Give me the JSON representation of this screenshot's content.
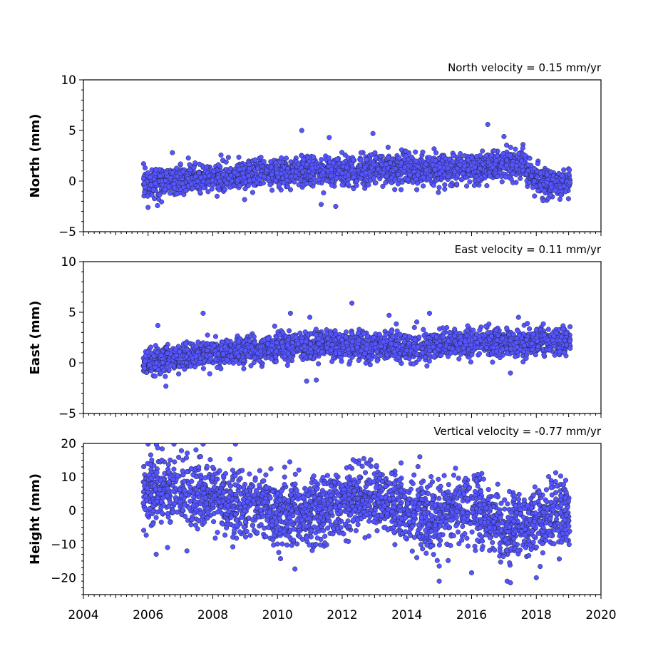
{
  "chart_data": [
    {
      "type": "scatter",
      "title": "North velocity = 0.15 mm/yr",
      "ylabel": "North (mm)",
      "xlim": [
        2004,
        2020
      ],
      "ylim": [
        -5,
        10
      ],
      "yticks": [
        -5,
        0,
        5,
        10
      ],
      "marker_color": "#5555ff",
      "x_range": [
        2005.85,
        2019.05
      ],
      "trend": [
        [
          2005.85,
          -0.2
        ],
        [
          2008.0,
          0.3
        ],
        [
          2010.0,
          0.8
        ],
        [
          2012.0,
          1.0
        ],
        [
          2014.0,
          1.2
        ],
        [
          2016.0,
          1.2
        ],
        [
          2017.6,
          1.8
        ],
        [
          2017.9,
          0.0
        ],
        [
          2019.05,
          -0.3
        ]
      ],
      "noise_sd": 0.7,
      "outliers": [
        [
          2010.75,
          5.0
        ],
        [
          2016.5,
          5.6
        ],
        [
          2012.95,
          4.7
        ],
        [
          2011.6,
          4.3
        ],
        [
          2017.0,
          4.4
        ],
        [
          2011.8,
          -2.5
        ],
        [
          2011.35,
          -2.3
        ],
        [
          2006.75,
          2.8
        ]
      ]
    },
    {
      "type": "scatter",
      "title": "East velocity = 0.11 mm/yr",
      "ylabel": "East (mm)",
      "xlim": [
        2004,
        2020
      ],
      "ylim": [
        -5,
        10
      ],
      "yticks": [
        -5,
        0,
        5,
        10
      ],
      "marker_color": "#5555ff",
      "x_range": [
        2005.85,
        2019.05
      ],
      "trend": [
        [
          2005.85,
          0.0
        ],
        [
          2008.0,
          1.0
        ],
        [
          2010.0,
          1.5
        ],
        [
          2012.0,
          1.7
        ],
        [
          2014.0,
          1.5
        ],
        [
          2016.0,
          2.0
        ],
        [
          2019.05,
          2.2
        ]
      ],
      "noise_sd": 0.65,
      "outliers": [
        [
          2012.3,
          5.9
        ],
        [
          2007.7,
          4.9
        ],
        [
          2010.4,
          4.9
        ],
        [
          2013.45,
          4.7
        ],
        [
          2014.7,
          4.9
        ],
        [
          2011.0,
          4.5
        ],
        [
          2017.45,
          4.5
        ],
        [
          2006.3,
          3.7
        ],
        [
          2010.9,
          -1.8
        ],
        [
          2011.2,
          -1.7
        ],
        [
          2006.55,
          -2.3
        ],
        [
          2017.2,
          -1.0
        ]
      ]
    },
    {
      "type": "scatter",
      "title": "Vertical velocity = -0.77 mm/yr",
      "ylabel": "Height (mm)",
      "xlim": [
        2004,
        2020
      ],
      "ylim": [
        -25,
        20
      ],
      "yticks": [
        -20,
        -10,
        0,
        10,
        20
      ],
      "marker_color": "#5555ff",
      "x_range": [
        2005.85,
        2019.05
      ],
      "trend": [
        [
          2005.85,
          5.0
        ],
        [
          2007.0,
          6.0
        ],
        [
          2008.0,
          4.0
        ],
        [
          2009.0,
          2.0
        ],
        [
          2010.0,
          0.0
        ],
        [
          2011.0,
          -2.0
        ],
        [
          2012.0,
          2.0
        ],
        [
          2013.0,
          4.0
        ],
        [
          2014.0,
          0.0
        ],
        [
          2015.0,
          -2.0
        ],
        [
          2016.0,
          2.0
        ],
        [
          2017.0,
          -5.0
        ],
        [
          2018.0,
          -3.0
        ],
        [
          2019.05,
          0.0
        ]
      ],
      "noise_sd": 4.8,
      "outliers": [
        [
          2006.0,
          19.8
        ],
        [
          2006.8,
          19.8
        ],
        [
          2007.7,
          19.8
        ],
        [
          2008.7,
          19.8
        ],
        [
          2006.25,
          -13.0
        ],
        [
          2006.6,
          -11.0
        ],
        [
          2007.2,
          -12.0
        ],
        [
          2015.0,
          -21.0
        ],
        [
          2017.1,
          -21.0
        ],
        [
          2017.2,
          -21.5
        ],
        [
          2015.0,
          -16.5
        ],
        [
          2016.0,
          -18.5
        ],
        [
          2018.0,
          -20.0
        ],
        [
          2014.4,
          16.0
        ]
      ]
    }
  ],
  "xticks": [
    2004,
    2006,
    2008,
    2010,
    2012,
    2014,
    2016,
    2018,
    2020
  ]
}
